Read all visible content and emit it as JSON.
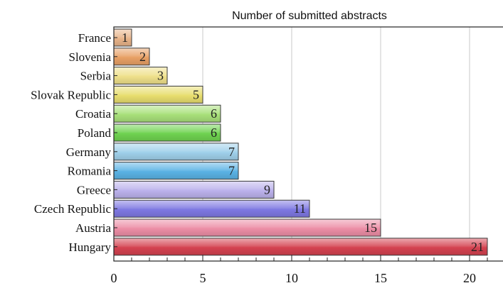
{
  "chart_data": {
    "type": "bar",
    "orientation": "horizontal",
    "title": "Number of submitted abstracts",
    "categories": [
      "France",
      "Slovenia",
      "Serbia",
      "Slovak Republic",
      "Croatia",
      "Poland",
      "Germany",
      "Romania",
      "Greece",
      "Czech Republic",
      "Austria",
      "Hungary"
    ],
    "values": [
      1,
      2,
      3,
      5,
      6,
      6,
      7,
      7,
      9,
      11,
      15,
      21
    ],
    "colors": [
      "#e8b48a",
      "#e8a065",
      "#efe08a",
      "#e8de6e",
      "#a8e07a",
      "#6fd250",
      "#9fd0ea",
      "#5ab2e4",
      "#bcb2ec",
      "#7e78e2",
      "#ec8ea6",
      "#d44250"
    ],
    "x_ticks": [
      0,
      5,
      10,
      15,
      20
    ],
    "xlim": [
      0,
      21.3
    ],
    "xlabel": "",
    "ylabel": "",
    "grid": "vertical",
    "legend": "none"
  }
}
